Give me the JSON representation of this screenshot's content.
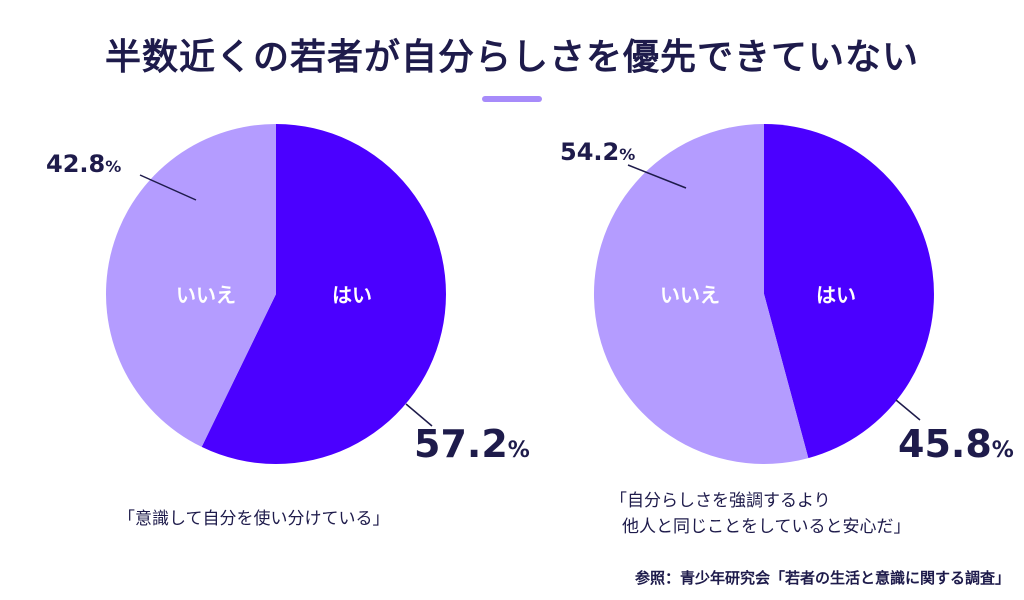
{
  "title": "半数近くの若者が自分らしさを優先できていない",
  "colors": {
    "yes": "#4b00ff",
    "no": "#b49cff",
    "text": "#1e1b4b",
    "accent": "#a78bfa"
  },
  "chart_data": [
    {
      "type": "pie",
      "caption": "「意識して自分を使い分けている」",
      "slices": [
        {
          "label": "はい",
          "value": 57.2,
          "display": "57.2",
          "unit": "%"
        },
        {
          "label": "いいえ",
          "value": 42.8,
          "display": "42.8",
          "unit": "%"
        }
      ]
    },
    {
      "type": "pie",
      "caption_line1": "「自分らしさを強調するより",
      "caption_line2": "他人と同じことをしていると安心だ」",
      "slices": [
        {
          "label": "はい",
          "value": 45.8,
          "display": "45.8",
          "unit": "%"
        },
        {
          "label": "いいえ",
          "value": 54.2,
          "display": "54.2",
          "unit": "%"
        }
      ]
    }
  ],
  "source": "参照：青少年研究会「若者の生活と意識に関する調査」"
}
